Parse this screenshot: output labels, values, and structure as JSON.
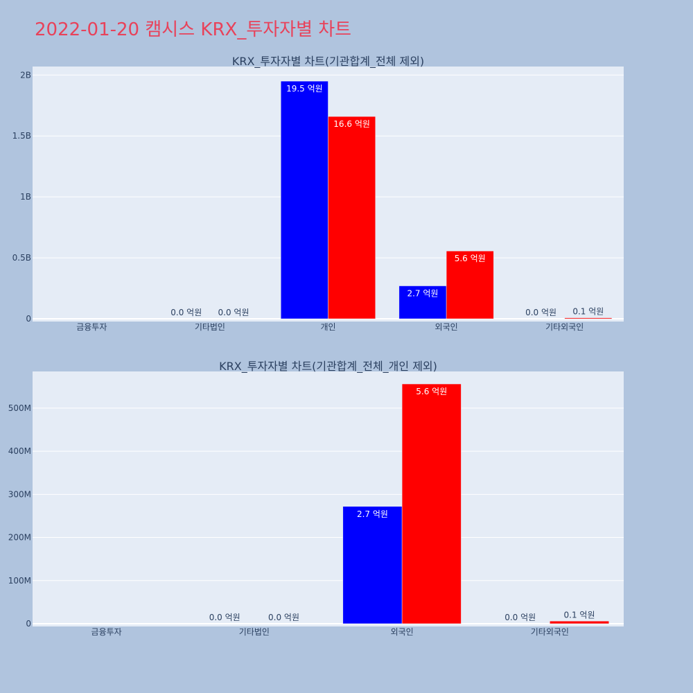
{
  "page": {
    "title": "2022-01-20 캠시스 KRX_투자자별 차트"
  },
  "colors": {
    "page_background": "#b0c4de",
    "plot_background": "#e5ecf6",
    "title_color": "#e8425a",
    "series_1": "#0000ff",
    "series_2": "#ff0000",
    "gridline": "#ffffff",
    "text": "#2a3f5f"
  },
  "chart_data": [
    {
      "type": "bar",
      "title": "KRX_투자자별 차트(기관합계_전체 제외)",
      "categories": [
        "금융투자",
        "기타법인",
        "개인",
        "외국인",
        "기타외국인"
      ],
      "ylim": [
        0,
        2070000000
      ],
      "y_ticks": [
        {
          "value": 0,
          "label": "0"
        },
        {
          "value": 500000000,
          "label": "0.5B"
        },
        {
          "value": 1000000000,
          "label": "1B"
        },
        {
          "value": 1500000000,
          "label": "1.5B"
        },
        {
          "value": 2000000000,
          "label": "2B"
        }
      ],
      "grid": true,
      "series": [
        {
          "color": "#0000ff",
          "values": [
            0,
            0,
            1950000000,
            270000000,
            0
          ],
          "labels": [
            "",
            "0.0 억원",
            "19.5 억원",
            "2.7 억원",
            "0.0 억원"
          ]
        },
        {
          "color": "#ff0000",
          "values": [
            0,
            0,
            1660000000,
            556000000,
            8000000
          ],
          "labels": [
            "",
            "0.0 억원",
            "16.6 억원",
            "5.6 억원",
            "0.1 억원"
          ]
        }
      ]
    },
    {
      "type": "bar",
      "title": "KRX_투자자별 차트(기관합계_전체_개인 제외)",
      "categories": [
        "금융투자",
        "기타법인",
        "외국인",
        "기타외국인"
      ],
      "ylim": [
        0,
        585000000
      ],
      "y_ticks": [
        {
          "value": 0,
          "label": "0"
        },
        {
          "value": 100000000,
          "label": "100M"
        },
        {
          "value": 200000000,
          "label": "200M"
        },
        {
          "value": 300000000,
          "label": "300M"
        },
        {
          "value": 400000000,
          "label": "400M"
        },
        {
          "value": 500000000,
          "label": "500M"
        }
      ],
      "grid": true,
      "series": [
        {
          "color": "#0000ff",
          "values": [
            0,
            0,
            272000000,
            0
          ],
          "labels": [
            "",
            "0.0 억원",
            "2.7 억원",
            "0.0 억원"
          ]
        },
        {
          "color": "#ff0000",
          "values": [
            0,
            0,
            556000000,
            6000000
          ],
          "labels": [
            "",
            "0.0 억원",
            "5.6 억원",
            "0.1 억원"
          ]
        }
      ]
    }
  ]
}
